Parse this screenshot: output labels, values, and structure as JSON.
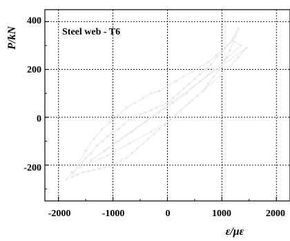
{
  "chart_data": {
    "type": "scatter",
    "title": "",
    "annotation": "Steel web - T6",
    "xlabel": "ε/με",
    "ylabel": "P/kN",
    "xlim": [
      -2250,
      2250
    ],
    "ylim": [
      -350,
      450
    ],
    "xticks": [
      "-2000",
      "-1000",
      "0",
      "1000",
      "2000"
    ],
    "yticks": [
      "400",
      "200",
      "0",
      "-200"
    ],
    "grid": true,
    "series_color": "#e6e6e6",
    "series": [
      {
        "points": [
          [
            -1850,
            -260
          ],
          [
            -1750,
            -230
          ],
          [
            -1600,
            -200
          ],
          [
            -1500,
            -170
          ],
          [
            -1400,
            -150
          ],
          [
            -1300,
            -120
          ],
          [
            -1200,
            -100
          ],
          [
            -1100,
            -80
          ],
          [
            -1000,
            -60
          ],
          [
            -900,
            -50
          ],
          [
            -800,
            -30
          ],
          [
            -700,
            -10
          ],
          [
            -600,
            0
          ],
          [
            -500,
            10
          ],
          [
            -400,
            20
          ],
          [
            -300,
            30
          ],
          [
            -200,
            40
          ],
          [
            -100,
            50
          ],
          [
            0,
            60
          ],
          [
            100,
            80
          ],
          [
            200,
            100
          ],
          [
            300,
            120
          ],
          [
            400,
            140
          ],
          [
            500,
            160
          ],
          [
            600,
            180
          ],
          [
            700,
            200
          ],
          [
            800,
            220
          ],
          [
            900,
            250
          ],
          [
            1000,
            270
          ],
          [
            1100,
            300
          ],
          [
            1200,
            330
          ],
          [
            1300,
            370
          ],
          [
            1250,
            340
          ],
          [
            1150,
            280
          ],
          [
            1050,
            240
          ],
          [
            950,
            200
          ],
          [
            850,
            170
          ],
          [
            750,
            140
          ],
          [
            650,
            110
          ],
          [
            550,
            90
          ],
          [
            450,
            70
          ],
          [
            350,
            50
          ],
          [
            250,
            30
          ],
          [
            150,
            10
          ],
          [
            50,
            -10
          ],
          [
            -50,
            -30
          ],
          [
            -150,
            -50
          ],
          [
            -250,
            -70
          ],
          [
            -350,
            -90
          ],
          [
            -450,
            -110
          ],
          [
            -550,
            -130
          ],
          [
            -650,
            -150
          ],
          [
            -750,
            -170
          ],
          [
            -850,
            -180
          ],
          [
            -950,
            -195
          ],
          [
            -1050,
            -205
          ],
          [
            -1150,
            -210
          ],
          [
            -1250,
            -215
          ],
          [
            -1350,
            -220
          ],
          [
            -1450,
            -225
          ],
          [
            -1550,
            -230
          ],
          [
            -1650,
            -240
          ],
          [
            -1750,
            -250
          ],
          [
            -1650,
            -200
          ],
          [
            -1500,
            -140
          ],
          [
            -1350,
            -90
          ],
          [
            -1200,
            -50
          ],
          [
            -1050,
            -20
          ],
          [
            -900,
            10
          ],
          [
            -750,
            40
          ],
          [
            -600,
            60
          ],
          [
            -450,
            80
          ],
          [
            -300,
            100
          ],
          [
            -150,
            110
          ],
          [
            0,
            130
          ],
          [
            150,
            150
          ],
          [
            300,
            170
          ],
          [
            450,
            190
          ],
          [
            600,
            210
          ],
          [
            750,
            230
          ],
          [
            900,
            260
          ],
          [
            1050,
            290
          ],
          [
            1200,
            320
          ],
          [
            1350,
            300
          ],
          [
            1100,
            250
          ],
          [
            850,
            200
          ],
          [
            600,
            150
          ],
          [
            350,
            100
          ],
          [
            100,
            60
          ],
          [
            -150,
            20
          ],
          [
            -400,
            -20
          ],
          [
            -650,
            -60
          ],
          [
            -900,
            -100
          ],
          [
            -1150,
            -140
          ],
          [
            -1400,
            -180
          ],
          [
            1450,
            290
          ],
          [
            1300,
            250
          ],
          [
            1000,
            180
          ],
          [
            700,
            120
          ],
          [
            400,
            60
          ],
          [
            0,
            -20
          ],
          [
            -300,
            -60
          ],
          [
            -700,
            -110
          ],
          [
            -1100,
            -160
          ],
          [
            -1600,
            -210
          ]
        ]
      }
    ]
  }
}
